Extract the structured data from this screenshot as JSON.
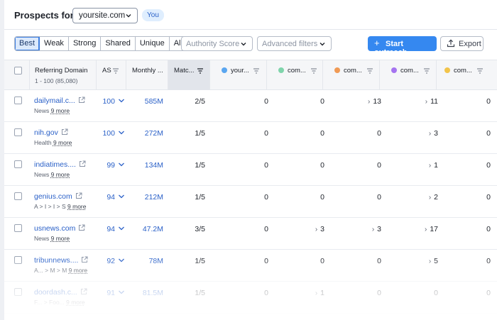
{
  "header": {
    "title": "Prospects for:",
    "site": "yoursite.com",
    "you_badge": "You"
  },
  "toolbar": {
    "segments": [
      "Best",
      "Weak",
      "Strong",
      "Shared",
      "Unique",
      "All"
    ],
    "active_segment": "Best",
    "authority_placeholder": "Authority Score",
    "filters_placeholder": "Advanced filters",
    "outreach_label": "Start outreach",
    "export_label": "Export"
  },
  "table": {
    "columns": {
      "domain": "Referring Domain",
      "domain_sub": "1 - 100 (85,080)",
      "as": "AS",
      "monthly": "Monthly ...",
      "matches": "Matc...",
      "yours": "your...",
      "comp1": "com...",
      "comp2": "com...",
      "comp3": "com...",
      "comp4": "com..."
    },
    "dot_colors": {
      "yours": "#5aa6f0",
      "comp1": "#7fd4ab",
      "comp2": "#f09a55",
      "comp3": "#a574f0",
      "comp4": "#f2c44a"
    },
    "rows": [
      {
        "domain": "dailymail.c...",
        "category": "News",
        "more": "9 more",
        "as": "100",
        "monthly": "585M",
        "matches": "2/5",
        "yours": "0",
        "comp1": "0",
        "comp2": "13",
        "comp3": "11",
        "comp4": "0"
      },
      {
        "domain": "nih.gov",
        "category": "Health",
        "more": "9 more",
        "as": "100",
        "monthly": "272M",
        "matches": "1/5",
        "yours": "0",
        "comp1": "0",
        "comp2": "0",
        "comp3": "3",
        "comp4": "0"
      },
      {
        "domain": "indiatimes....",
        "category": "News",
        "more": "9 more",
        "as": "99",
        "monthly": "134M",
        "matches": "1/5",
        "yours": "0",
        "comp1": "0",
        "comp2": "0",
        "comp3": "1",
        "comp4": "0"
      },
      {
        "domain": "genius.com",
        "category": "A > I > I > S",
        "more": "9 more",
        "as": "94",
        "monthly": "212M",
        "matches": "1/5",
        "yours": "0",
        "comp1": "0",
        "comp2": "0",
        "comp3": "2",
        "comp4": "0"
      },
      {
        "domain": "usnews.com",
        "category": "News",
        "more": "9 more",
        "as": "94",
        "monthly": "47.2M",
        "matches": "3/5",
        "yours": "0",
        "comp1": "3",
        "comp2": "3",
        "comp3": "17",
        "comp4": "0"
      },
      {
        "domain": "tribunnews....",
        "category": "A... > M > M",
        "more": "9 more",
        "as": "92",
        "monthly": "78M",
        "matches": "1/5",
        "yours": "0",
        "comp1": "0",
        "comp2": "0",
        "comp3": "5",
        "comp4": "0"
      },
      {
        "domain": "doordash.c...",
        "category": "F... > Foo...",
        "more": "9 more",
        "as": "91",
        "monthly": "81.5M",
        "matches": "1/5",
        "yours": "0",
        "comp1": "1",
        "comp2": "0",
        "comp3": "0",
        "comp4": "0"
      }
    ]
  }
}
